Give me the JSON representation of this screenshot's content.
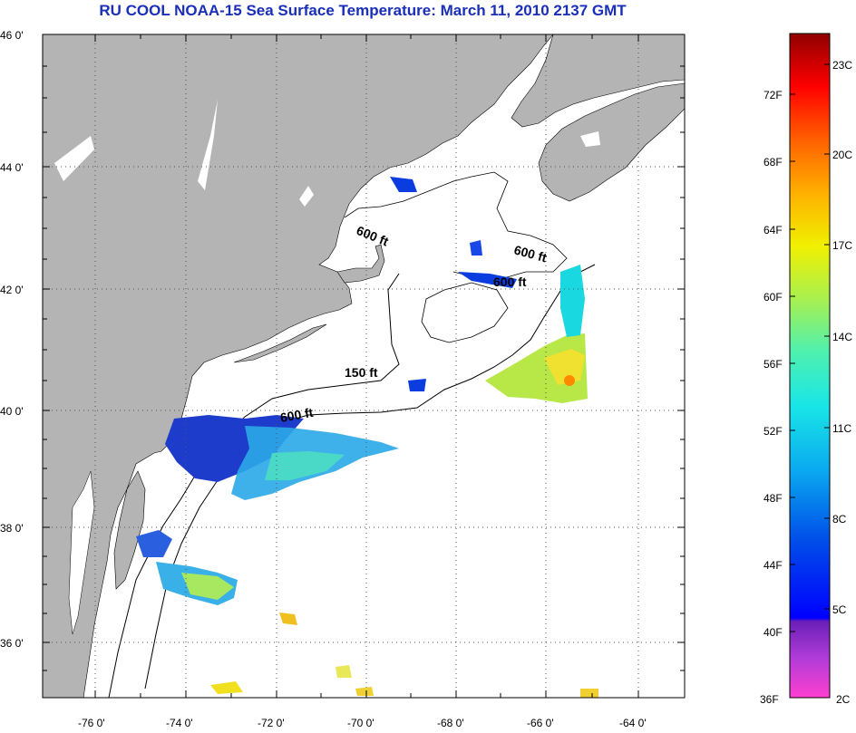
{
  "title": "RU COOL  NOAA-15  Sea Surface Temperature:  March 11, 2010 2137 GMT",
  "lat_labels": [
    "46 0'",
    "44 0'",
    "42 0'",
    "40 0'",
    "38 0'",
    "36 0'"
  ],
  "lon_labels": [
    "-76 0'",
    "-74 0'",
    "-72 0'",
    "-70 0'",
    "-68 0'",
    "-66 0'",
    "-64 0'"
  ],
  "contour_labels": [
    "600 ft",
    "600 ft",
    "600 ft",
    "150 ft",
    "600 ft"
  ],
  "colorbar": {
    "fahrenheit": [
      "72F",
      "68F",
      "64F",
      "60F",
      "56F",
      "52F",
      "48F",
      "44F",
      "40F",
      "36F"
    ],
    "celsius": [
      "23C",
      "20C",
      "17C",
      "14C",
      "11C",
      "8C",
      "5C",
      "2C"
    ]
  },
  "colors": {
    "land": "#b4b4b4",
    "title": "#1a2fb8"
  }
}
